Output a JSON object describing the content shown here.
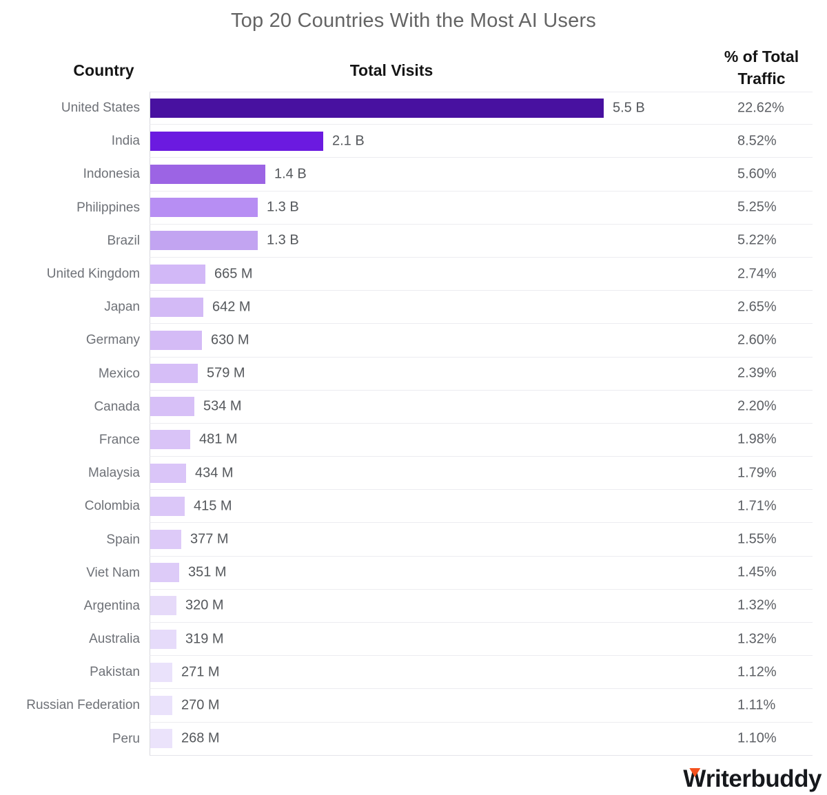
{
  "title": "Top 20 Countries With the Most AI Users",
  "columns": {
    "country": "Country",
    "visits": "Total Visits",
    "traffic": "% of Total Traffic"
  },
  "logo": {
    "name": "Writerbuddy",
    "first_letter": "W",
    "rest": "riterbuddy",
    "accent_color": "#f4511e",
    "text_color": "#16181c"
  },
  "chart_data": {
    "type": "bar",
    "orientation": "horizontal",
    "title": "Top 20 Countries With the Most AI Users",
    "xlabel": "Total Visits",
    "ylabel": "Country",
    "legend": false,
    "gridlines": "row separators only",
    "max_bar_value_millions": 5500,
    "categories": [
      "United States",
      "India",
      "Indonesia",
      "Philippines",
      "Brazil",
      "United Kingdom",
      "Japan",
      "Germany",
      "Mexico",
      "Canada",
      "France",
      "Malaysia",
      "Colombia",
      "Spain",
      "Viet Nam",
      "Argentina",
      "Australia",
      "Pakistan",
      "Russian Federation",
      "Peru"
    ],
    "series": [
      {
        "name": "Total Visits",
        "unit": "visits (millions)",
        "values_millions": [
          5500,
          2100,
          1400,
          1300,
          1300,
          665,
          642,
          630,
          579,
          534,
          481,
          434,
          415,
          377,
          351,
          320,
          319,
          271,
          270,
          268
        ],
        "display_labels": [
          "5.5 B",
          "2.1 B",
          "1.4 B",
          "1.3 B",
          "1.3 B",
          "665 M",
          "642 M",
          "630 M",
          "579 M",
          "534 M",
          "481 M",
          "434 M",
          "415 M",
          "377 M",
          "351 M",
          "320 M",
          "319 M",
          "271 M",
          "270 M",
          "268 M"
        ]
      },
      {
        "name": "% of Total Traffic",
        "unit": "percent",
        "values": [
          22.62,
          8.52,
          5.6,
          5.25,
          5.22,
          2.74,
          2.65,
          2.6,
          2.39,
          2.2,
          1.98,
          1.79,
          1.71,
          1.55,
          1.45,
          1.32,
          1.32,
          1.12,
          1.11,
          1.1
        ],
        "display_labels": [
          "22.62%",
          "8.52%",
          "5.60%",
          "5.25%",
          "5.22%",
          "2.74%",
          "2.65%",
          "2.60%",
          "2.39%",
          "2.20%",
          "1.98%",
          "1.79%",
          "1.71%",
          "1.55%",
          "1.45%",
          "1.32%",
          "1.32%",
          "1.12%",
          "1.11%",
          "1.10%"
        ]
      }
    ],
    "bar_colors": [
      "#4811A0",
      "#6B1AE0",
      "#9C64E4",
      "#B78EF3",
      "#C2A4F1",
      "#D2B8F7",
      "#D3BAF6",
      "#D4BBF6",
      "#D6BEF7",
      "#D7C0F7",
      "#D9C3F7",
      "#DAC5F8",
      "#DBC7F8",
      "#DDCAF8",
      "#DDCBF8",
      "#E6DAF9",
      "#E6DBFA",
      "#EAE2FB",
      "#EAE2FB",
      "#EBE3FB"
    ]
  }
}
